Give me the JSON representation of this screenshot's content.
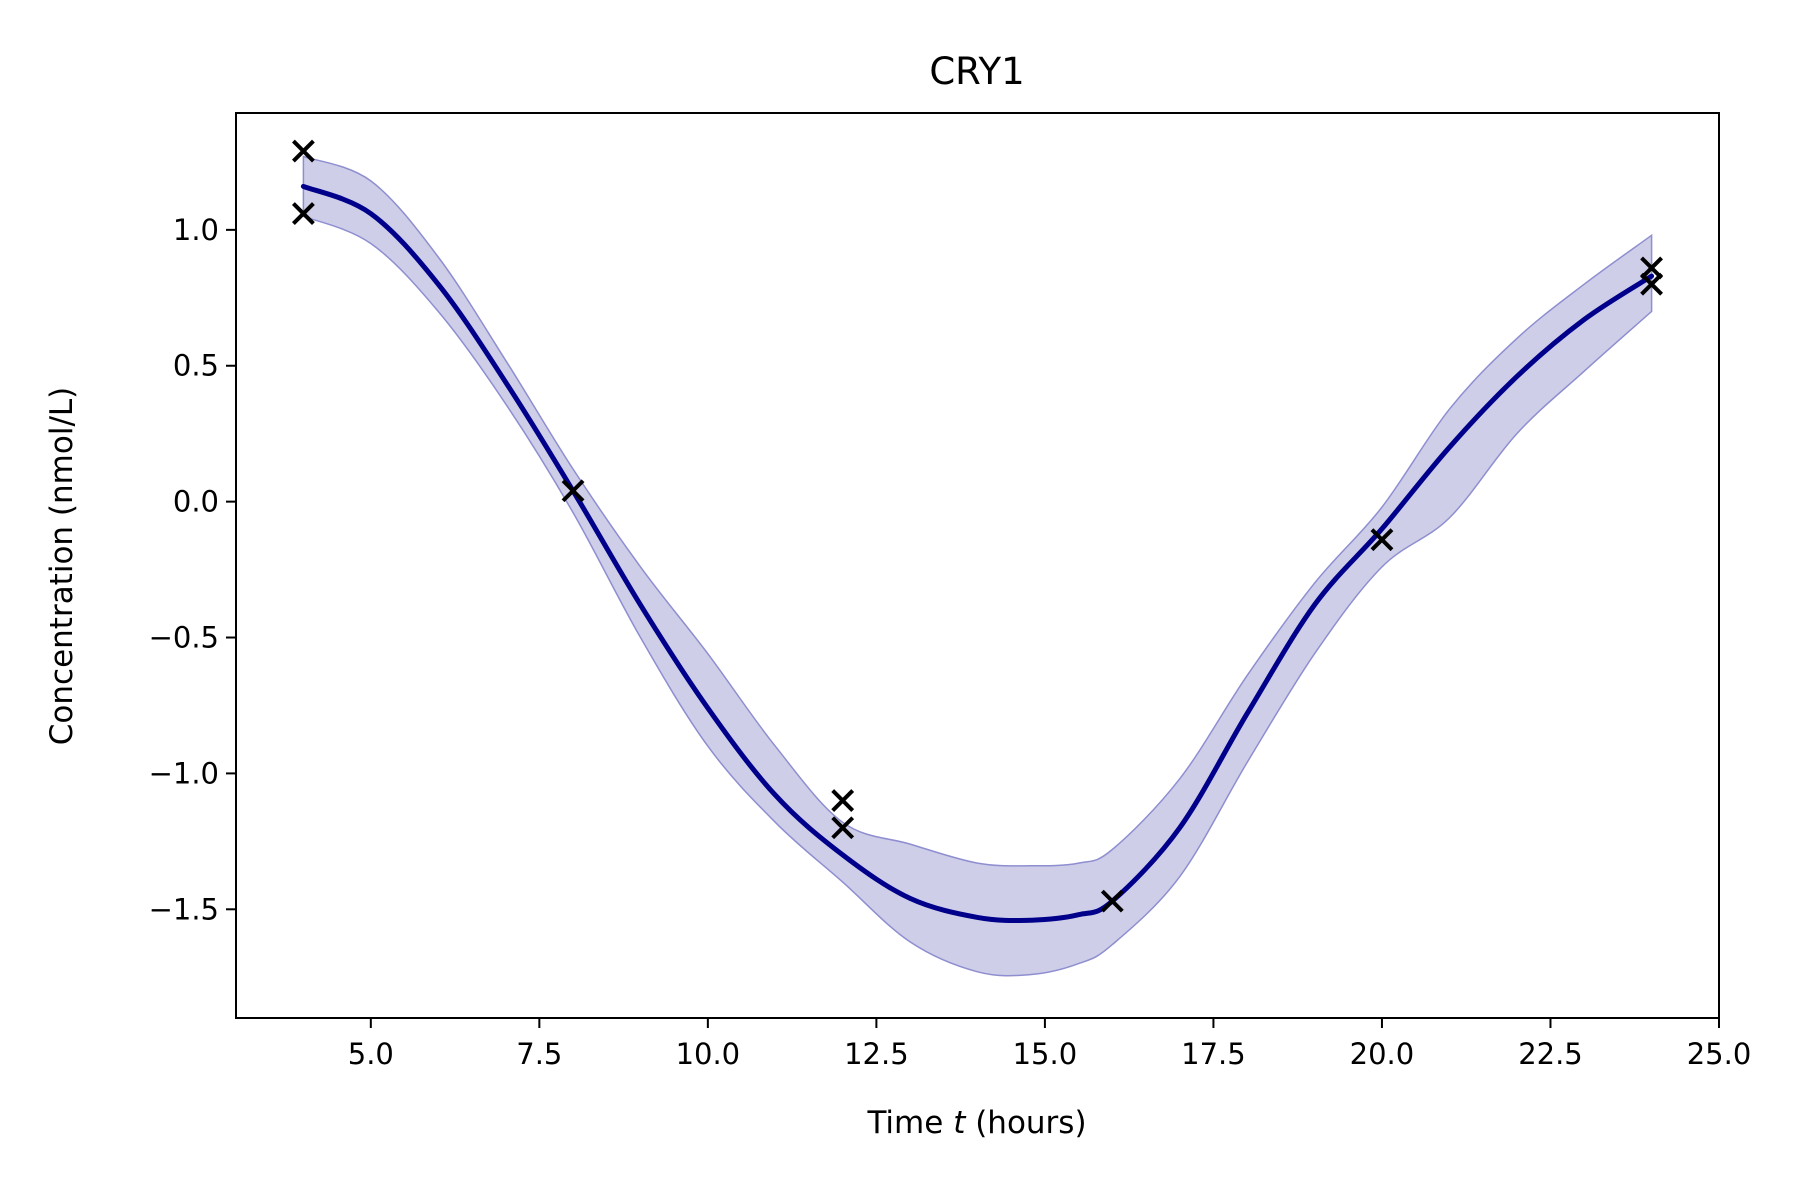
{
  "chart_data": {
    "type": "line",
    "title": "CRY1",
    "xlabel_prefix": "Time ",
    "xlabel_var": "t",
    "xlabel_suffix": " (hours)",
    "ylabel": "Concentration (nmol/L)",
    "xlim": [
      3.0,
      25.0
    ],
    "ylim": [
      -1.9,
      1.43
    ],
    "x_ticks": [
      5.0,
      7.5,
      10.0,
      12.5,
      15.0,
      17.5,
      20.0,
      22.5,
      25.0
    ],
    "x_tick_labels": [
      "5.0",
      "7.5",
      "10.0",
      "12.5",
      "15.0",
      "17.5",
      "20.0",
      "22.5",
      "25.0"
    ],
    "y_ticks": [
      1.0,
      0.5,
      0.0,
      -0.5,
      -1.0,
      -1.5
    ],
    "y_tick_labels": [
      "1.0",
      "0.5",
      "0.0",
      "−0.5",
      "−1.0",
      "−1.5"
    ],
    "grid": false,
    "legend": "none",
    "colors": {
      "mean": "#00008b",
      "band": "#b3b3dd",
      "band_edge": "#8e8ed0",
      "points": "#000000"
    },
    "mean_curve": {
      "x": [
        4.0,
        5.0,
        6.0,
        7.0,
        8.0,
        9.0,
        10.0,
        11.0,
        12.0,
        13.0,
        14.0,
        14.8,
        15.5,
        16.0,
        17.0,
        18.0,
        19.0,
        20.0,
        21.0,
        22.0,
        23.0,
        24.0
      ],
      "y": [
        1.16,
        1.06,
        0.8,
        0.44,
        0.04,
        -0.38,
        -0.76,
        -1.08,
        -1.3,
        -1.46,
        -1.53,
        -1.54,
        -1.52,
        -1.47,
        -1.2,
        -0.78,
        -0.38,
        -0.1,
        0.2,
        0.46,
        0.67,
        0.83
      ]
    },
    "band_upper": [
      1.27,
      1.18,
      0.9,
      0.52,
      0.12,
      -0.24,
      -0.56,
      -0.9,
      -1.18,
      -1.26,
      -1.33,
      -1.34,
      -1.33,
      -1.28,
      -1.02,
      -0.64,
      -0.3,
      -0.02,
      0.34,
      0.6,
      0.8,
      0.98
    ],
    "band_lower": [
      1.05,
      0.95,
      0.7,
      0.36,
      -0.04,
      -0.5,
      -0.9,
      -1.18,
      -1.4,
      -1.62,
      -1.73,
      -1.74,
      -1.7,
      -1.63,
      -1.38,
      -0.96,
      -0.56,
      -0.24,
      -0.06,
      0.25,
      0.48,
      0.7
    ],
    "observations": {
      "x": [
        4.0,
        4.0,
        8.0,
        12.0,
        12.0,
        16.0,
        20.0,
        24.0,
        24.0
      ],
      "y": [
        1.29,
        1.06,
        0.04,
        -1.1,
        -1.2,
        -1.47,
        -0.14,
        0.86,
        0.8
      ]
    }
  }
}
